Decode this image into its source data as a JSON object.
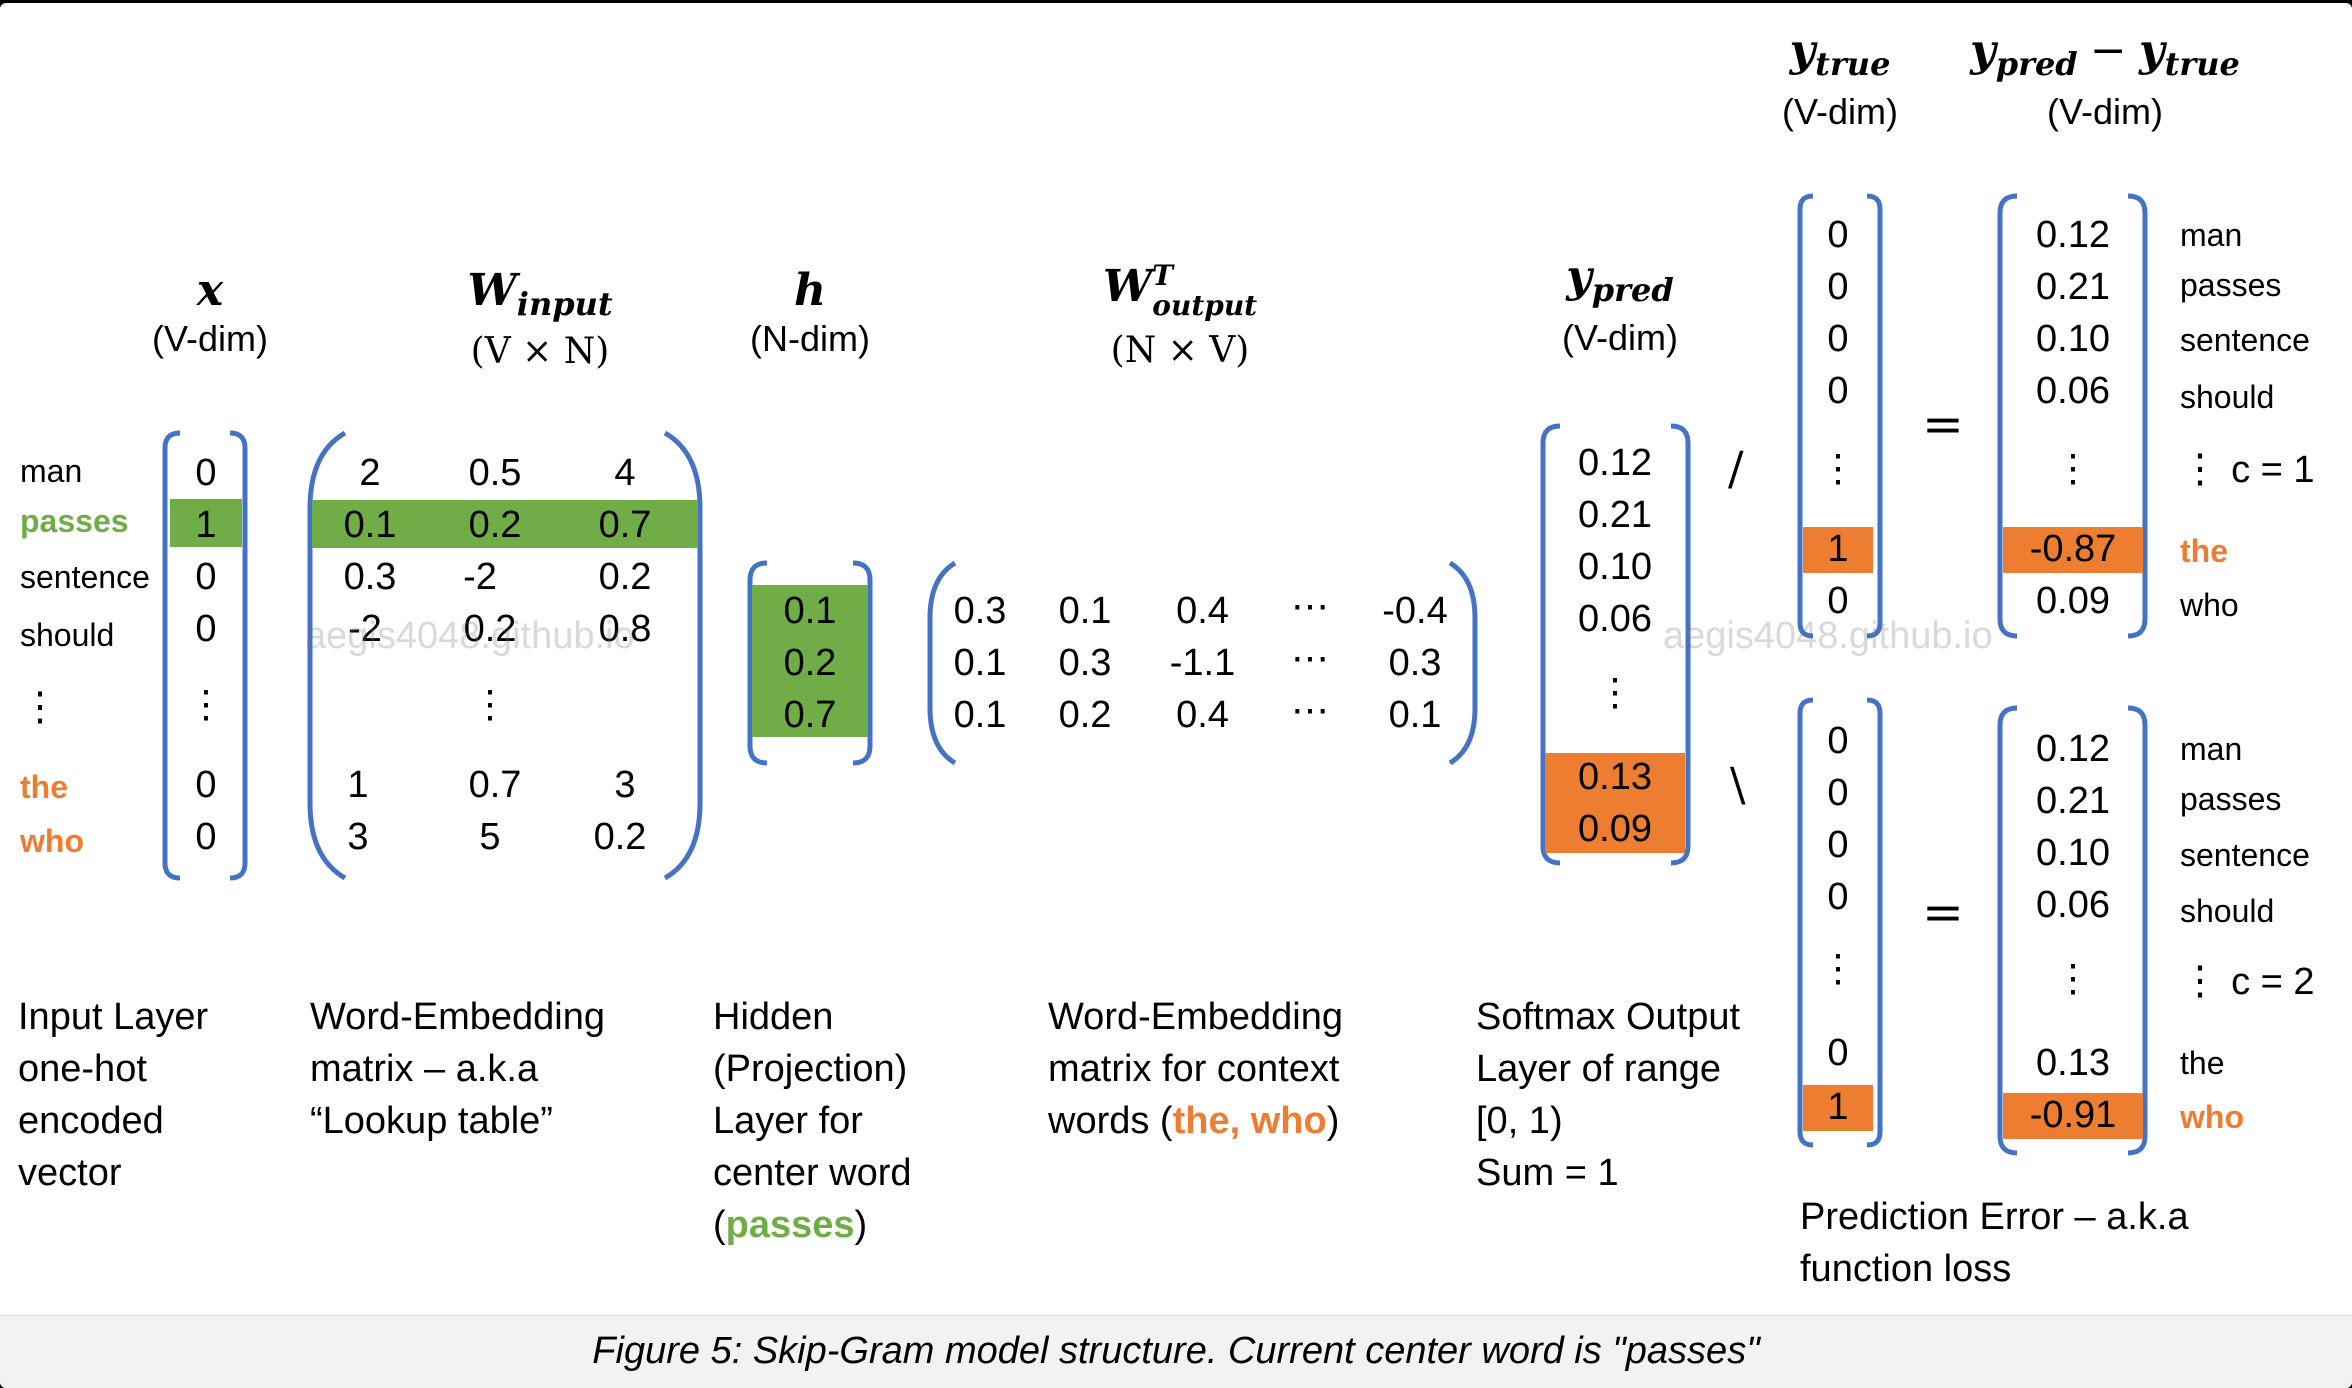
{
  "headers": {
    "x": {
      "sym": "x",
      "dim": "(V-dim)"
    },
    "w_input": {
      "sym": "W",
      "sub": "input",
      "dim": "(V × N)"
    },
    "h": {
      "sym": "h",
      "dim": "(N-dim)"
    },
    "w_output": {
      "sym": "W",
      "sup": "T",
      "sub": "output",
      "dim": "(N × V)"
    },
    "y_pred": {
      "sym": "y",
      "sub": "pred",
      "dim": "(V-dim)"
    },
    "y_true": {
      "sym": "y",
      "sub": "true",
      "dim": "(V-dim)"
    },
    "error": {
      "sym1": "y",
      "sub1": "pred",
      "minus": "−",
      "sym2": "y",
      "sub2": "true",
      "dim": "(V-dim)"
    }
  },
  "vocab": [
    "man",
    "passes",
    "sentence",
    "should",
    "⋮",
    "the",
    "who"
  ],
  "x_vector": [
    "0",
    "1",
    "0",
    "0",
    "⋮",
    "0",
    "0"
  ],
  "w_input": {
    "rows": [
      [
        "2",
        "0.5",
        "4"
      ],
      [
        "0.1",
        "0.2",
        "0.7"
      ],
      [
        "0.3",
        "-2",
        "0.2"
      ],
      [
        "-2",
        "0.2",
        "0.8"
      ],
      [
        "1",
        "0.7",
        "3"
      ],
      [
        "3",
        "5",
        "0.2"
      ]
    ],
    "dots": "⋮"
  },
  "h_vector": [
    "0.1",
    "0.2",
    "0.7"
  ],
  "w_output": {
    "rows": [
      [
        "0.3",
        "0.1",
        "0.4",
        "⋯",
        "-0.4"
      ],
      [
        "0.1",
        "0.3",
        "-1.1",
        "⋯",
        "0.3"
      ],
      [
        "0.1",
        "0.2",
        "0.4",
        "⋯",
        "0.1"
      ]
    ]
  },
  "y_pred": [
    "0.12",
    "0.21",
    "0.10",
    "0.06",
    "⋮",
    "0.13",
    "0.09"
  ],
  "c1": {
    "y_true": [
      "0",
      "0",
      "0",
      "0",
      "⋮",
      "1",
      "0"
    ],
    "error": [
      "0.12",
      "0.21",
      "0.10",
      "0.06",
      "⋮",
      "-0.87",
      "0.09"
    ],
    "words": [
      "man",
      "passes",
      "sentence",
      "should",
      "⋮",
      "the",
      "who"
    ],
    "c_label": "c = 1"
  },
  "c2": {
    "y_true": [
      "0",
      "0",
      "0",
      "0",
      "⋮",
      "0",
      "1"
    ],
    "error": [
      "0.12",
      "0.21",
      "0.10",
      "0.06",
      "⋮",
      "0.13",
      "-0.91"
    ],
    "words": [
      "man",
      "passes",
      "sentence",
      "should",
      "⋮",
      "the",
      "who"
    ],
    "c_label": "c = 2"
  },
  "operators": {
    "divide": "/",
    "divide2": "\\",
    "equals": "="
  },
  "descriptions": {
    "input": [
      "Input Layer",
      "one-hot",
      "encoded",
      "vector"
    ],
    "w_input": [
      "Word-Embedding",
      "matrix – a.k.a",
      "“Lookup table”"
    ],
    "hidden": [
      "Hidden",
      "(Projection)",
      "Layer for",
      "center word"
    ],
    "hidden_word": {
      "open": "(",
      "word": "passes",
      "close": ")"
    },
    "w_output": [
      "Word-Embedding",
      "matrix for context"
    ],
    "w_output_words": {
      "pre": "words (",
      "word": "the, who",
      "close": ")"
    },
    "softmax": [
      "Softmax Output",
      "Layer of range",
      "[0, 1)",
      "Sum = 1"
    ],
    "error": [
      "Prediction Error – a.k.a",
      "function loss"
    ]
  },
  "watermark": "aegis4048.github.io",
  "caption": "Figure 5: Skip-Gram model structure. Current center word is \"passes\"",
  "colors": {
    "bracket": "#4472c4",
    "green": "#70ad47",
    "orange": "#ed7d31"
  }
}
